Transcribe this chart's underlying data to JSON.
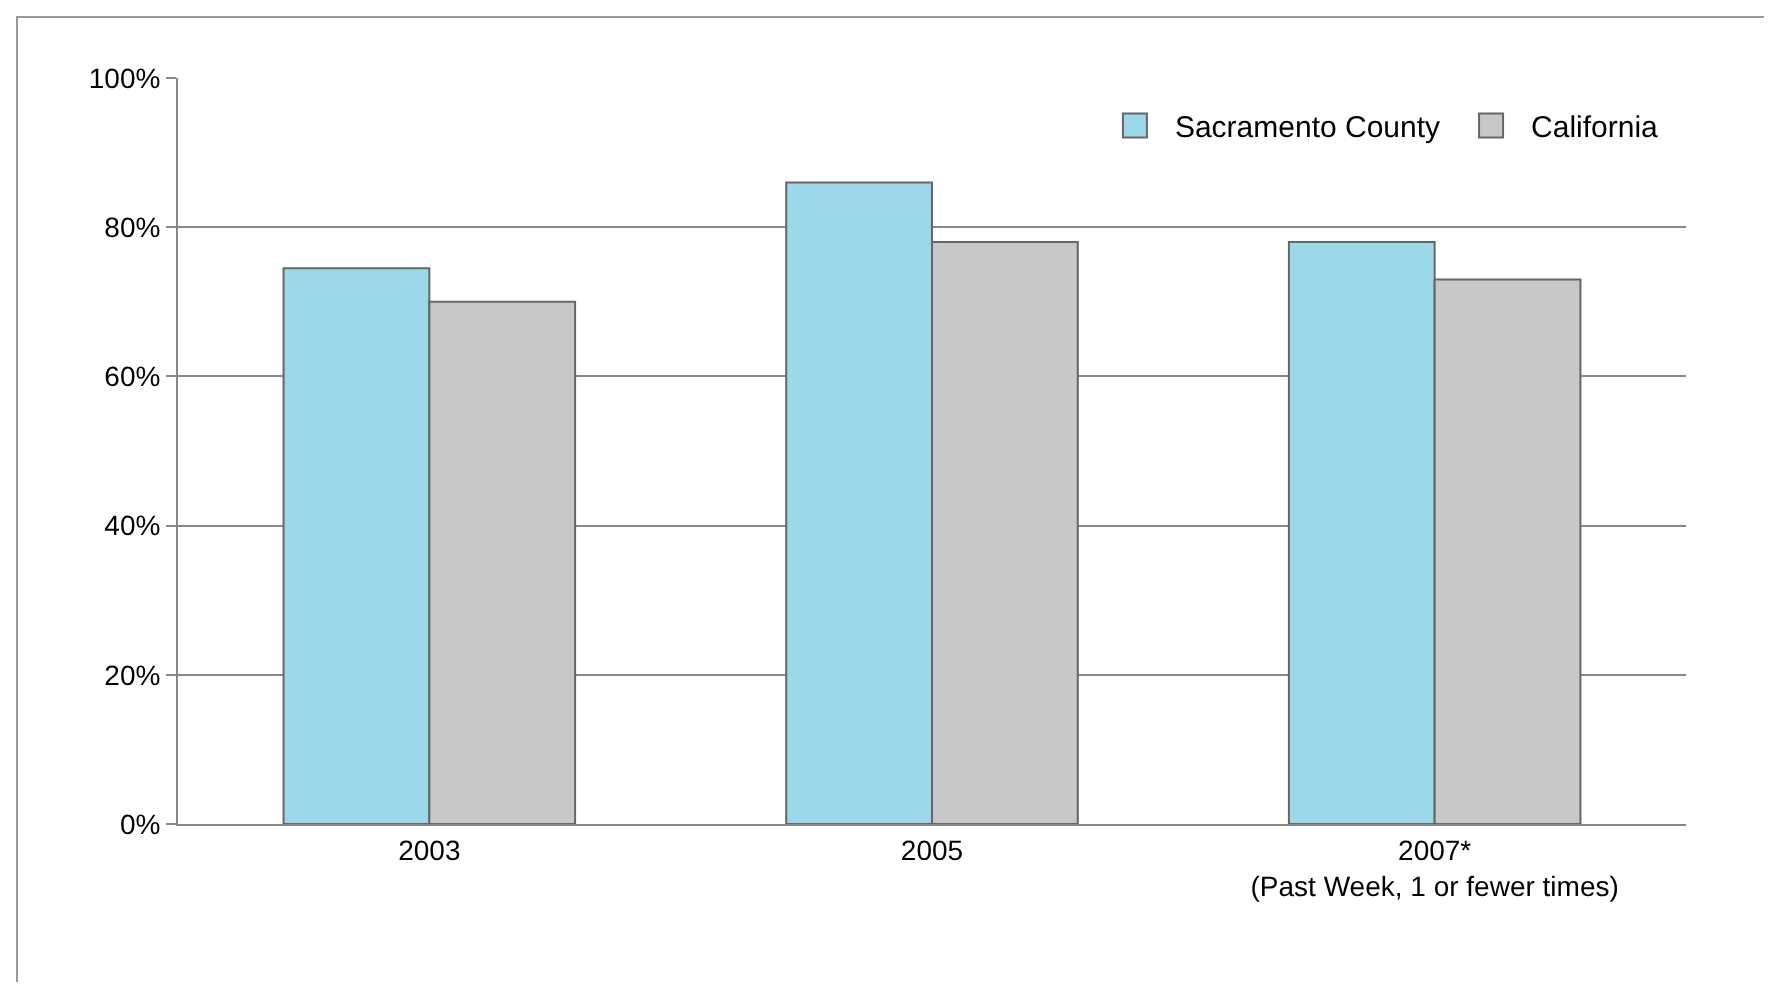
{
  "chart_data": {
    "type": "bar",
    "categories": [
      "2003",
      "2005",
      "2007*\n(Past Week, 1 or fewer times)"
    ],
    "series": [
      {
        "name": "Sacramento County",
        "color": "#9dd8ea",
        "values": [
          74.5,
          86,
          78
        ]
      },
      {
        "name": "California",
        "color": "#c8c8c8",
        "values": [
          70,
          78,
          73
        ]
      }
    ],
    "ylim": [
      0,
      100
    ],
    "yticks": [
      {
        "value": 0,
        "label": "0%"
      },
      {
        "value": 20,
        "label": "20%"
      },
      {
        "value": 40,
        "label": "40%"
      },
      {
        "value": 60,
        "label": "60%"
      },
      {
        "value": 80,
        "label": "80%"
      },
      {
        "value": 100,
        "label": "100%"
      }
    ],
    "grid": "y",
    "legend": "top right"
  }
}
